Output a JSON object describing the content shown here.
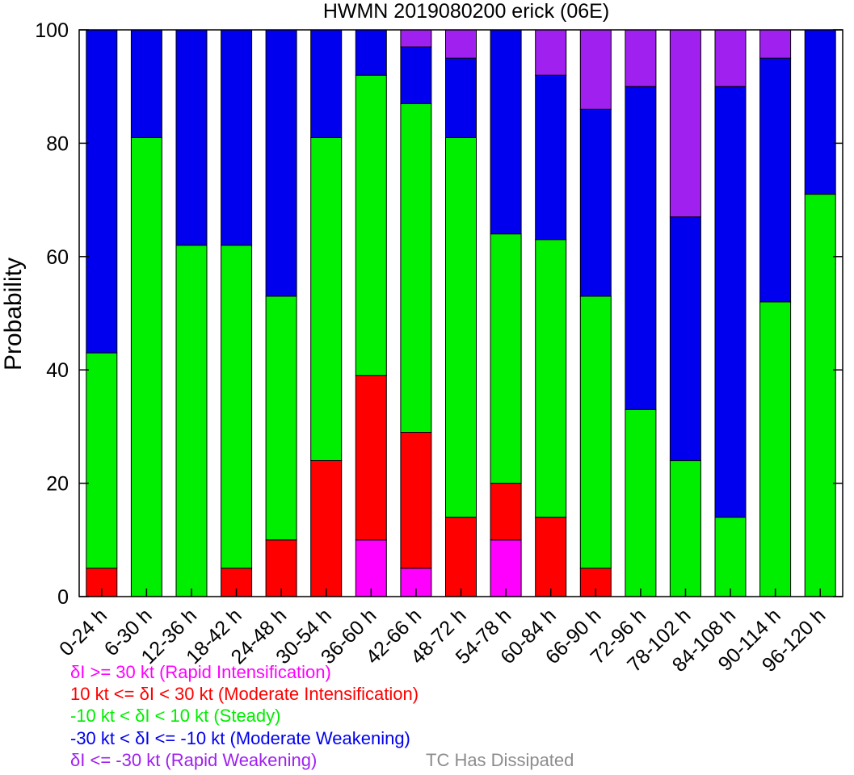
{
  "colors": {
    "ri": "#ff00ff",
    "mi": "#ff0000",
    "steady": "#00ee00",
    "mw": "#0000ee",
    "rw": "#a020f0",
    "dissipated": "#8c8c8c"
  },
  "legend": {
    "ri": "δI >= 30 kt (Rapid Intensification)",
    "mi": "10 kt <= δI < 30 kt (Moderate Intensification)",
    "steady": "-10 kt < δI < 10 kt (Steady)",
    "mw": "-30 kt < δI <= -10 kt (Moderate Weakening)",
    "rw": "δI <= -30 kt (Rapid Weakening)",
    "tc": "TC Has Dissipated"
  },
  "chart_data": {
    "type": "bar",
    "stacked": true,
    "title": "HWMN 2019080200 erick (06E)",
    "xlabel": "",
    "ylabel": "Probability",
    "ylim": [
      0,
      100
    ],
    "yticks": [
      0,
      20,
      40,
      60,
      80,
      100
    ],
    "categories": [
      "0-24 h",
      "6-30 h",
      "12-36 h",
      "18-42 h",
      "24-48 h",
      "30-54 h",
      "36-60 h",
      "42-66 h",
      "48-72 h",
      "54-78 h",
      "60-84 h",
      "66-90 h",
      "72-96 h",
      "78-102 h",
      "84-108 h",
      "90-114 h",
      "96-120 h"
    ],
    "series": [
      {
        "key": "ri",
        "values": [
          0,
          0,
          0,
          0,
          0,
          0,
          10,
          5,
          0,
          10,
          0,
          0,
          0,
          0,
          0,
          0,
          0
        ]
      },
      {
        "key": "mi",
        "values": [
          5,
          0,
          0,
          5,
          10,
          24,
          29,
          24,
          14,
          10,
          14,
          5,
          0,
          0,
          0,
          0,
          0
        ]
      },
      {
        "key": "steady",
        "values": [
          38,
          81,
          62,
          57,
          43,
          57,
          53,
          58,
          67,
          44,
          49,
          48,
          33,
          24,
          14,
          52,
          71
        ]
      },
      {
        "key": "mw",
        "values": [
          57,
          19,
          38,
          38,
          47,
          19,
          8,
          10,
          14,
          36,
          29,
          33,
          57,
          43,
          76,
          43,
          29
        ]
      },
      {
        "key": "rw",
        "values": [
          0,
          0,
          0,
          0,
          0,
          0,
          0,
          3,
          5,
          0,
          8,
          14,
          10,
          33,
          10,
          5,
          0
        ]
      }
    ]
  }
}
